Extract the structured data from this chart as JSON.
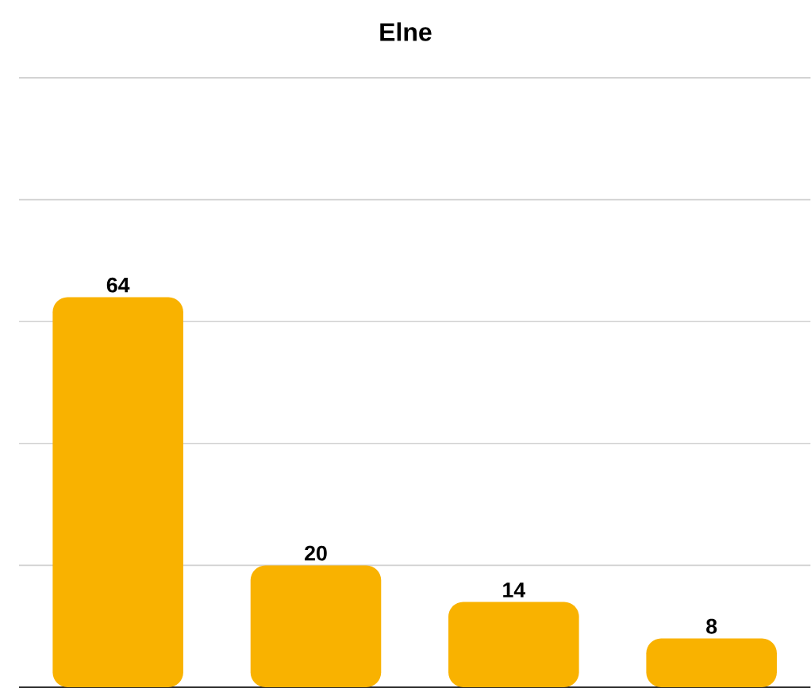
{
  "chart_data": {
    "type": "bar",
    "title": "Elne",
    "categories": [
      null,
      null,
      null,
      null
    ],
    "values": [
      64,
      20,
      14,
      8
    ],
    "color": "#f9b200",
    "data_labels": true,
    "ylim": [
      0,
      100
    ],
    "grid": "y"
  }
}
